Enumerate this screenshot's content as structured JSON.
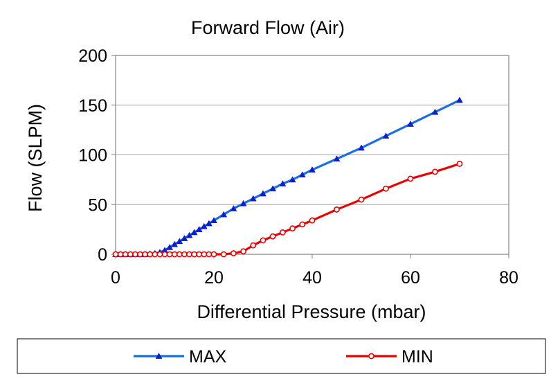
{
  "chart_data": {
    "type": "line",
    "title": "Forward Flow (Air)",
    "xlabel": "Differential Pressure (mbar)",
    "ylabel": "Flow (SLPM)",
    "xlim": [
      0,
      80
    ],
    "ylim": [
      0,
      200
    ],
    "xticks": [
      0,
      20,
      40,
      60,
      80
    ],
    "yticks": [
      0,
      50,
      100,
      150,
      200
    ],
    "grid": "horizontal",
    "legend": "bottom",
    "series": [
      {
        "name": "MAX",
        "color": "#1a6fe0",
        "marker": "triangle",
        "markerColor": "#0a1fd0",
        "points": [
          [
            0,
            0
          ],
          [
            1,
            0
          ],
          [
            2,
            0
          ],
          [
            3,
            0
          ],
          [
            4,
            0
          ],
          [
            5,
            0
          ],
          [
            6,
            0
          ],
          [
            7,
            0.5
          ],
          [
            8,
            1
          ],
          [
            9,
            2
          ],
          [
            10,
            4
          ],
          [
            11,
            7
          ],
          [
            12,
            10
          ],
          [
            13,
            13
          ],
          [
            14,
            16
          ],
          [
            15,
            19
          ],
          [
            16,
            22
          ],
          [
            17,
            25
          ],
          [
            18,
            28
          ],
          [
            19,
            31
          ],
          [
            20,
            34
          ],
          [
            22,
            40
          ],
          [
            24,
            46
          ],
          [
            26,
            51
          ],
          [
            28,
            56
          ],
          [
            30,
            61
          ],
          [
            32,
            66
          ],
          [
            34,
            71
          ],
          [
            36,
            75
          ],
          [
            38,
            80
          ],
          [
            40,
            85
          ],
          [
            45,
            96
          ],
          [
            50,
            107
          ],
          [
            55,
            119
          ],
          [
            60,
            131
          ],
          [
            65,
            143
          ],
          [
            70,
            155
          ]
        ]
      },
      {
        "name": "MIN",
        "color": "#e80000",
        "marker": "circle",
        "markerColor": "#e80000",
        "points": [
          [
            0,
            0
          ],
          [
            1,
            0
          ],
          [
            2,
            0
          ],
          [
            3,
            0
          ],
          [
            4,
            0
          ],
          [
            5,
            0
          ],
          [
            6,
            0
          ],
          [
            7,
            0
          ],
          [
            8,
            0
          ],
          [
            9,
            0
          ],
          [
            10,
            0
          ],
          [
            11,
            0
          ],
          [
            12,
            0
          ],
          [
            13,
            0
          ],
          [
            14,
            0
          ],
          [
            15,
            0
          ],
          [
            16,
            0
          ],
          [
            17,
            0
          ],
          [
            18,
            0
          ],
          [
            19,
            0
          ],
          [
            20,
            0
          ],
          [
            22,
            0
          ],
          [
            24,
            1
          ],
          [
            26,
            3
          ],
          [
            28,
            9
          ],
          [
            30,
            14
          ],
          [
            32,
            18
          ],
          [
            34,
            22
          ],
          [
            36,
            26
          ],
          [
            38,
            30
          ],
          [
            40,
            34
          ],
          [
            45,
            45
          ],
          [
            50,
            55
          ],
          [
            55,
            66
          ],
          [
            60,
            76
          ],
          [
            65,
            83
          ],
          [
            70,
            91
          ]
        ]
      }
    ]
  }
}
